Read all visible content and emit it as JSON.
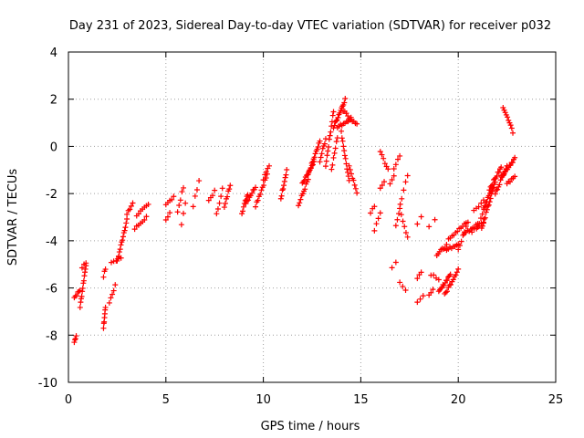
{
  "chart_data": {
    "type": "scatter",
    "title": "Day 231 of 2023, Sidereal Day-to-day VTEC variation (SDTVAR) for receiver p032",
    "xlabel": "GPS time / hours",
    "ylabel": "SDTVAR / TECUs",
    "xlim": [
      0,
      25
    ],
    "ylim": [
      -10,
      4
    ],
    "xticks": [
      "0",
      "5",
      "10",
      "15",
      "20",
      "25"
    ],
    "yticks": [
      "4",
      "2",
      "0",
      "-2",
      "-4",
      "-6",
      "-8",
      "-10"
    ],
    "xtick_values": [
      0,
      5,
      10,
      15,
      20,
      25
    ],
    "ytick_values": [
      4,
      2,
      0,
      -2,
      -4,
      -6,
      -8,
      -10
    ],
    "grid": true,
    "marker": "plus",
    "color": "#ff0000",
    "series": [
      {
        "name": "SDTVAR",
        "segments": [
          {
            "x0": 0.3,
            "x1": 0.4,
            "y0": -8.3,
            "y1": -8.0,
            "n": 4
          },
          {
            "x0": 0.3,
            "x1": 0.6,
            "y0": -6.4,
            "y1": -6.1,
            "n": 6
          },
          {
            "x0": 0.6,
            "x1": 0.9,
            "y0": -6.8,
            "y1": -5.0,
            "n": 12
          },
          {
            "x0": 0.7,
            "x1": 0.9,
            "y0": -5.2,
            "y1": -4.9,
            "n": 3
          },
          {
            "x0": 1.8,
            "x1": 1.9,
            "y0": -7.7,
            "y1": -6.8,
            "n": 7
          },
          {
            "x0": 1.8,
            "x1": 1.9,
            "y0": -5.5,
            "y1": -5.2,
            "n": 3
          },
          {
            "x0": 2.1,
            "x1": 2.4,
            "y0": -6.6,
            "y1": -5.9,
            "n": 5
          },
          {
            "x0": 2.2,
            "x1": 2.7,
            "y0": -4.9,
            "y1": -4.7,
            "n": 5
          },
          {
            "x0": 2.5,
            "x1": 3.0,
            "y0": -4.9,
            "y1": -3.1,
            "n": 14
          },
          {
            "x0": 3.0,
            "x1": 3.3,
            "y0": -2.9,
            "y1": -2.4,
            "n": 5
          },
          {
            "x0": 3.4,
            "x1": 4.0,
            "y0": -3.5,
            "y1": -3.0,
            "n": 7
          },
          {
            "x0": 3.5,
            "x1": 4.1,
            "y0": -2.9,
            "y1": -2.5,
            "n": 7
          },
          {
            "x0": 5.0,
            "x1": 5.4,
            "y0": -2.5,
            "y1": -2.1,
            "n": 5
          },
          {
            "x0": 5.0,
            "x1": 5.2,
            "y0": -3.1,
            "y1": -2.8,
            "n": 3
          },
          {
            "x0": 5.6,
            "x1": 5.9,
            "y0": -2.8,
            "y1": -1.7,
            "n": 5
          },
          {
            "x0": 5.8,
            "x1": 6.0,
            "y0": -3.3,
            "y1": -2.4,
            "n": 3
          },
          {
            "x0": 6.4,
            "x1": 6.7,
            "y0": -2.5,
            "y1": -1.5,
            "n": 4
          },
          {
            "x0": 7.2,
            "x1": 7.5,
            "y0": -2.3,
            "y1": -1.9,
            "n": 4
          },
          {
            "x0": 7.6,
            "x1": 7.9,
            "y0": -2.9,
            "y1": -1.8,
            "n": 5
          },
          {
            "x0": 8.0,
            "x1": 8.3,
            "y0": -2.6,
            "y1": -1.6,
            "n": 7
          },
          {
            "x0": 8.9,
            "x1": 9.2,
            "y0": -2.8,
            "y1": -2.0,
            "n": 8
          },
          {
            "x0": 9.1,
            "x1": 9.6,
            "y0": -2.4,
            "y1": -1.7,
            "n": 9
          },
          {
            "x0": 9.6,
            "x1": 10.2,
            "y0": -2.5,
            "y1": -1.2,
            "n": 11
          },
          {
            "x0": 10.0,
            "x1": 10.3,
            "y0": -1.4,
            "y1": -0.8,
            "n": 5
          },
          {
            "x0": 10.9,
            "x1": 11.2,
            "y0": -2.2,
            "y1": -1.0,
            "n": 9
          },
          {
            "x0": 11.8,
            "x1": 12.3,
            "y0": -2.5,
            "y1": -1.4,
            "n": 10
          },
          {
            "x0": 12.0,
            "x1": 12.6,
            "y0": -1.6,
            "y1": -0.7,
            "n": 12
          },
          {
            "x0": 12.3,
            "x1": 12.9,
            "y0": -1.2,
            "y1": 0.2,
            "n": 14
          },
          {
            "x0": 12.9,
            "x1": 13.2,
            "y0": -0.6,
            "y1": 0.3,
            "n": 7
          },
          {
            "x0": 13.2,
            "x1": 13.6,
            "y0": -0.8,
            "y1": 1.5,
            "n": 12
          },
          {
            "x0": 13.5,
            "x1": 13.8,
            "y0": -1.0,
            "y1": 0.4,
            "n": 7
          },
          {
            "x0": 13.6,
            "x1": 14.2,
            "y0": 0.8,
            "y1": 2.0,
            "n": 14
          },
          {
            "x0": 13.8,
            "x1": 14.5,
            "y0": 0.8,
            "y1": 1.2,
            "n": 10
          },
          {
            "x0": 14.0,
            "x1": 14.4,
            "y0": 0.6,
            "y1": -1.5,
            "n": 12
          },
          {
            "x0": 14.1,
            "x1": 14.8,
            "y0": 1.5,
            "y1": 0.9,
            "n": 10
          },
          {
            "x0": 14.4,
            "x1": 14.8,
            "y0": -0.8,
            "y1": -2.0,
            "n": 8
          },
          {
            "x0": 15.5,
            "x1": 15.7,
            "y0": -2.8,
            "y1": -2.5,
            "n": 3
          },
          {
            "x0": 15.7,
            "x1": 16.0,
            "y0": -3.6,
            "y1": -2.8,
            "n": 4
          },
          {
            "x0": 16.0,
            "x1": 16.4,
            "y0": -0.2,
            "y1": -1.0,
            "n": 6
          },
          {
            "x0": 16.0,
            "x1": 16.2,
            "y0": -1.8,
            "y1": -1.5,
            "n": 3
          },
          {
            "x0": 16.5,
            "x1": 16.7,
            "y0": -1.6,
            "y1": -1.2,
            "n": 3
          },
          {
            "x0": 16.6,
            "x1": 16.8,
            "y0": -5.1,
            "y1": -4.9,
            "n": 2
          },
          {
            "x0": 16.7,
            "x1": 17.0,
            "y0": -1.0,
            "y1": -0.4,
            "n": 4
          },
          {
            "x0": 16.8,
            "x1": 17.1,
            "y0": -3.4,
            "y1": -2.2,
            "n": 5
          },
          {
            "x0": 17.0,
            "x1": 17.4,
            "y0": -2.6,
            "y1": -3.9,
            "n": 6
          },
          {
            "x0": 17.0,
            "x1": 17.3,
            "y0": -5.8,
            "y1": -6.1,
            "n": 3
          },
          {
            "x0": 17.2,
            "x1": 17.4,
            "y0": -1.8,
            "y1": -1.2,
            "n": 3
          },
          {
            "x0": 17.9,
            "x1": 18.2,
            "y0": -6.6,
            "y1": -6.3,
            "n": 3
          },
          {
            "x0": 17.9,
            "x1": 18.1,
            "y0": -5.6,
            "y1": -5.3,
            "n": 3
          },
          {
            "x0": 17.9,
            "x1": 18.1,
            "y0": -3.3,
            "y1": -3.0,
            "n": 2
          },
          {
            "x0": 18.5,
            "x1": 18.7,
            "y0": -6.3,
            "y1": -6.0,
            "n": 3
          },
          {
            "x0": 18.5,
            "x1": 18.8,
            "y0": -3.4,
            "y1": -3.1,
            "n": 2
          },
          {
            "x0": 18.6,
            "x1": 19.0,
            "y0": -5.4,
            "y1": -5.6,
            "n": 4
          },
          {
            "x0": 18.9,
            "x1": 19.4,
            "y0": -4.6,
            "y1": -4.2,
            "n": 8
          },
          {
            "x0": 19.0,
            "x1": 19.6,
            "y0": -6.2,
            "y1": -5.4,
            "n": 12
          },
          {
            "x0": 19.3,
            "x1": 20.0,
            "y0": -6.3,
            "y1": -5.2,
            "n": 12
          },
          {
            "x0": 19.4,
            "x1": 20.0,
            "y0": -4.4,
            "y1": -4.1,
            "n": 8
          },
          {
            "x0": 19.5,
            "x1": 20.5,
            "y0": -3.9,
            "y1": -3.2,
            "n": 12
          },
          {
            "x0": 20.0,
            "x1": 20.4,
            "y0": -4.4,
            "y1": -3.4,
            "n": 6
          },
          {
            "x0": 20.3,
            "x1": 21.0,
            "y0": -3.7,
            "y1": -3.3,
            "n": 9
          },
          {
            "x0": 20.7,
            "x1": 21.3,
            "y0": -3.6,
            "y1": -3.2,
            "n": 6
          },
          {
            "x0": 20.8,
            "x1": 21.3,
            "y0": -2.7,
            "y1": -2.3,
            "n": 5
          },
          {
            "x0": 21.0,
            "x1": 21.4,
            "y0": -3.4,
            "y1": -2.5,
            "n": 6
          },
          {
            "x0": 21.2,
            "x1": 21.8,
            "y0": -3.5,
            "y1": -1.8,
            "n": 14
          },
          {
            "x0": 21.3,
            "x1": 21.9,
            "y0": -2.6,
            "y1": -1.5,
            "n": 12
          },
          {
            "x0": 21.6,
            "x1": 22.2,
            "y0": -1.8,
            "y1": -0.9,
            "n": 12
          },
          {
            "x0": 21.9,
            "x1": 22.5,
            "y0": -2.0,
            "y1": -0.8,
            "n": 12
          },
          {
            "x0": 22.2,
            "x1": 22.9,
            "y0": -1.3,
            "y1": -0.5,
            "n": 14
          },
          {
            "x0": 22.5,
            "x1": 22.9,
            "y0": -1.6,
            "y1": -1.3,
            "n": 6
          },
          {
            "x0": 22.3,
            "x1": 22.8,
            "y0": 1.7,
            "y1": 0.6,
            "n": 10
          }
        ]
      }
    ]
  }
}
